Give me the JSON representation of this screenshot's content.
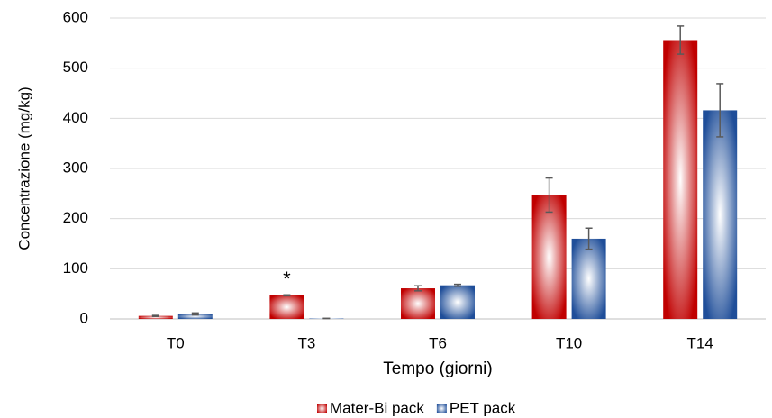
{
  "chart_data": {
    "type": "bar",
    "y_label": "Concentrazione (mg/kg)",
    "x_label": "Tempo (giorni)",
    "annotation": "*",
    "categories": [
      "T0",
      "T3",
      "T6",
      "T10",
      "T14"
    ],
    "series": [
      {
        "name": "Mater-Bi pack",
        "color": "#c00000",
        "values": [
          6,
          47,
          61,
          247,
          556
        ],
        "errors": [
          1,
          1,
          5,
          34,
          28
        ]
      },
      {
        "name": "PET pack",
        "color": "#1f4e99",
        "values": [
          10,
          1,
          67,
          160,
          416
        ],
        "errors": [
          2,
          0,
          2,
          21,
          53
        ]
      }
    ],
    "ylim": [
      0,
      600
    ],
    "yticks": [
      0,
      100,
      200,
      300,
      400,
      500,
      600
    ],
    "grid": true,
    "legend": "bottom"
  }
}
